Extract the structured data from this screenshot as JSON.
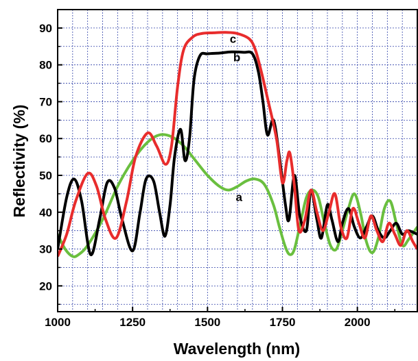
{
  "chart_data": {
    "type": "line",
    "xlabel": "Wavelength (nm)",
    "ylabel": "Reflectivity (%)",
    "xlim": [
      1000,
      2200
    ],
    "ylim": [
      13,
      95
    ],
    "x_ticks": [
      1000,
      1250,
      1500,
      1750,
      2000
    ],
    "x_tick_labels": [
      "1000",
      "1250",
      "1500",
      "1750",
      "2000"
    ],
    "y_ticks": [
      20,
      30,
      40,
      50,
      60,
      70,
      80,
      90
    ],
    "y_tick_labels": [
      "20",
      "30",
      "40",
      "50",
      "60",
      "70",
      "80",
      "90"
    ],
    "grid": true,
    "series": [
      {
        "name": "a",
        "color": "#6abf3f",
        "x": [
          1000,
          1025,
          1050,
          1070,
          1100,
          1150,
          1200,
          1250,
          1300,
          1340,
          1380,
          1420,
          1460,
          1500,
          1540,
          1570,
          1600,
          1630,
          1660,
          1690,
          1720,
          1740,
          1760,
          1775,
          1790,
          1810,
          1830,
          1850,
          1870,
          1890,
          1910,
          1930,
          1950,
          1970,
          1990,
          2010,
          2030,
          2050,
          2070,
          2090,
          2110,
          2130,
          2150,
          2170,
          2200
        ],
        "y": [
          34,
          30,
          28,
          28.5,
          31,
          38,
          47,
          54,
          59,
          61,
          60.5,
          58,
          54,
          50,
          47,
          46,
          47,
          48.5,
          49,
          47.5,
          42,
          36,
          30.5,
          28.5,
          30,
          37,
          44,
          46,
          44,
          37,
          31,
          30,
          35,
          41,
          45,
          40,
          32,
          29,
          33,
          41,
          43,
          37,
          31,
          32.5,
          36
        ]
      },
      {
        "name": "b",
        "color": "#000000",
        "x": [
          1000,
          1030,
          1055,
          1080,
          1110,
          1140,
          1165,
          1190,
          1215,
          1250,
          1275,
          1295,
          1320,
          1340,
          1358,
          1375,
          1390,
          1410,
          1425,
          1440,
          1455,
          1475,
          1500,
          1540,
          1580,
          1620,
          1650,
          1670,
          1685,
          1700,
          1720,
          1740,
          1760,
          1772,
          1790,
          1808,
          1830,
          1845,
          1865,
          1880,
          1900,
          1915,
          1935,
          1950,
          1970,
          1990,
          2010,
          2030,
          2050,
          2070,
          2090,
          2110,
          2130,
          2150,
          2170,
          2200
        ],
        "y": [
          30,
          44,
          49,
          43,
          28.5,
          38,
          48,
          46.5,
          38,
          29.5,
          40,
          49,
          48.5,
          40,
          33.5,
          42,
          55,
          62.5,
          54,
          60,
          76,
          82.5,
          83,
          83.2,
          83.5,
          83.4,
          83,
          78,
          70,
          61,
          65,
          55,
          42,
          38,
          50,
          39,
          35,
          46,
          38,
          33,
          42,
          38,
          32,
          37,
          41,
          36,
          33,
          36,
          39,
          35,
          33,
          35,
          37,
          34,
          35,
          34
        ]
      },
      {
        "name": "c",
        "color": "#e82c2c",
        "x": [
          1000,
          1030,
          1060,
          1100,
          1130,
          1160,
          1195,
          1230,
          1260,
          1300,
          1330,
          1360,
          1380,
          1400,
          1420,
          1450,
          1480,
          1520,
          1560,
          1600,
          1640,
          1660,
          1680,
          1700,
          1730,
          1750,
          1765,
          1775,
          1790,
          1805,
          1825,
          1845,
          1865,
          1885,
          1905,
          1925,
          1945,
          1965,
          1985,
          2005,
          2025,
          2045,
          2065,
          2085,
          2105,
          2125,
          2145,
          2165,
          2185,
          2200
        ],
        "y": [
          28,
          34,
          43,
          50.5,
          47,
          38,
          33,
          43,
          55,
          61.5,
          58,
          53,
          58,
          74,
          84,
          87.5,
          88.5,
          88.7,
          88.8,
          88.5,
          87,
          84,
          78,
          71,
          60,
          48,
          54,
          56,
          47,
          35,
          38,
          46,
          40,
          35,
          40,
          45,
          36,
          33,
          41,
          37,
          33,
          39,
          35,
          32,
          37,
          34,
          31,
          35,
          32,
          30
        ]
      }
    ],
    "annotations": [
      {
        "text": "a",
        "x": 1605,
        "y": 43
      },
      {
        "text": "b",
        "x": 1598,
        "y": 81
      },
      {
        "text": "c",
        "x": 1585,
        "y": 86
      }
    ]
  }
}
